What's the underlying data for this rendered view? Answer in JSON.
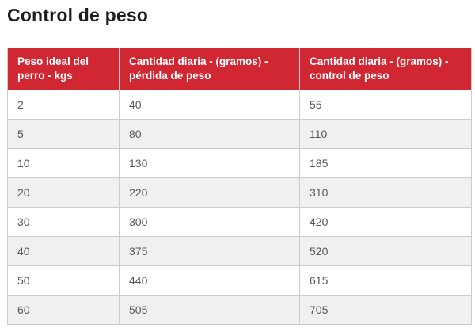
{
  "page": {
    "title": "Control de peso"
  },
  "table": {
    "columns": [
      "Peso ideal del perro - kgs",
      "Cantidad diaria - (gramos) - pérdida de peso",
      "Cantidad diaria - (gramos) - control de peso"
    ],
    "rows": [
      [
        "2",
        "40",
        "55"
      ],
      [
        "5",
        "80",
        "110"
      ],
      [
        "10",
        "130",
        "185"
      ],
      [
        "20",
        "220",
        "310"
      ],
      [
        "30",
        "300",
        "420"
      ],
      [
        "40",
        "375",
        "520"
      ],
      [
        "50",
        "440",
        "615"
      ],
      [
        "60",
        "505",
        "705"
      ]
    ]
  },
  "colors": {
    "header_background": "#d02733",
    "header_text": "#ffffff",
    "row_alt_background": "#f0f0f1",
    "cell_text": "#56585e",
    "border": "#cccccc",
    "title_text": "#1e1e1e"
  }
}
